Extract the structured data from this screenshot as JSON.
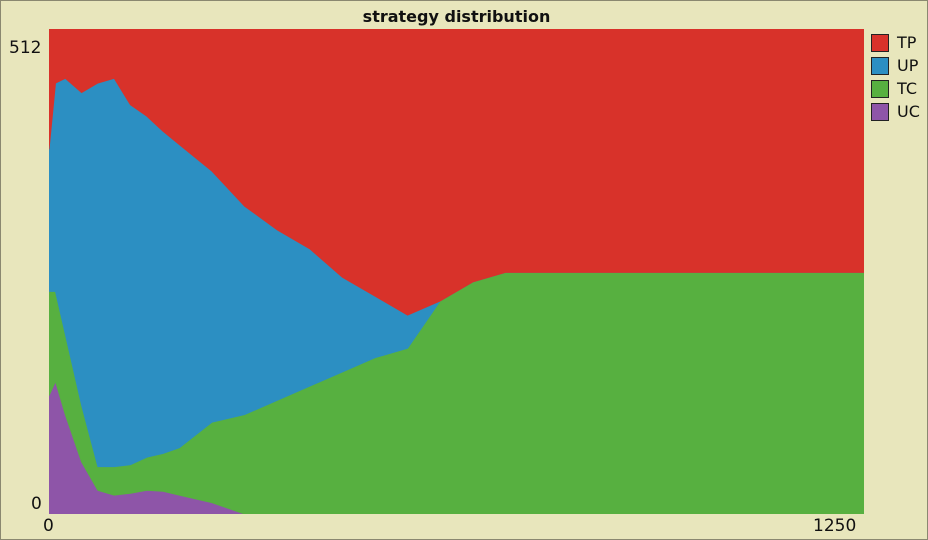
{
  "chart_data": {
    "type": "area",
    "title": "strategy distribution",
    "xlabel": "",
    "ylabel": "",
    "xlim": [
      0,
      1250
    ],
    "ylim": [
      0,
      512
    ],
    "x_ticks": [
      "0",
      "1250"
    ],
    "y_ticks": [
      "0",
      "512"
    ],
    "stacked": true,
    "legend_position": "right",
    "x": [
      0,
      10,
      25,
      50,
      75,
      100,
      125,
      150,
      175,
      200,
      250,
      300,
      350,
      400,
      450,
      500,
      550,
      600,
      650,
      700,
      750,
      800,
      900,
      1000,
      1100,
      1250
    ],
    "series": [
      {
        "name": "UC",
        "color": "#8e55a8",
        "values": [
          125,
          140,
          105,
          55,
          25,
          20,
          22,
          25,
          24,
          20,
          12,
          0,
          0,
          0,
          0,
          0,
          0,
          0,
          0,
          0,
          0,
          0,
          0,
          0,
          0,
          0
        ]
      },
      {
        "name": "TC",
        "color": "#57b040",
        "values": [
          110,
          95,
          85,
          60,
          25,
          30,
          30,
          35,
          40,
          50,
          85,
          105,
          120,
          135,
          150,
          165,
          175,
          225,
          245,
          255,
          255,
          255,
          255,
          255,
          255,
          255
        ]
      },
      {
        "name": "UP",
        "color": "#2c8fc2",
        "values": [
          150,
          220,
          270,
          330,
          405,
          410,
          380,
          360,
          340,
          320,
          265,
          220,
          180,
          145,
          100,
          65,
          35,
          0,
          0,
          0,
          0,
          0,
          0,
          0,
          0,
          0
        ]
      },
      {
        "name": "TP",
        "color": "#d8322a",
        "values": [
          127,
          57,
          52,
          67,
          57,
          52,
          80,
          92,
          108,
          122,
          150,
          187,
          212,
          232,
          262,
          282,
          302,
          287,
          267,
          257,
          257,
          257,
          257,
          257,
          257,
          257
        ]
      }
    ]
  }
}
